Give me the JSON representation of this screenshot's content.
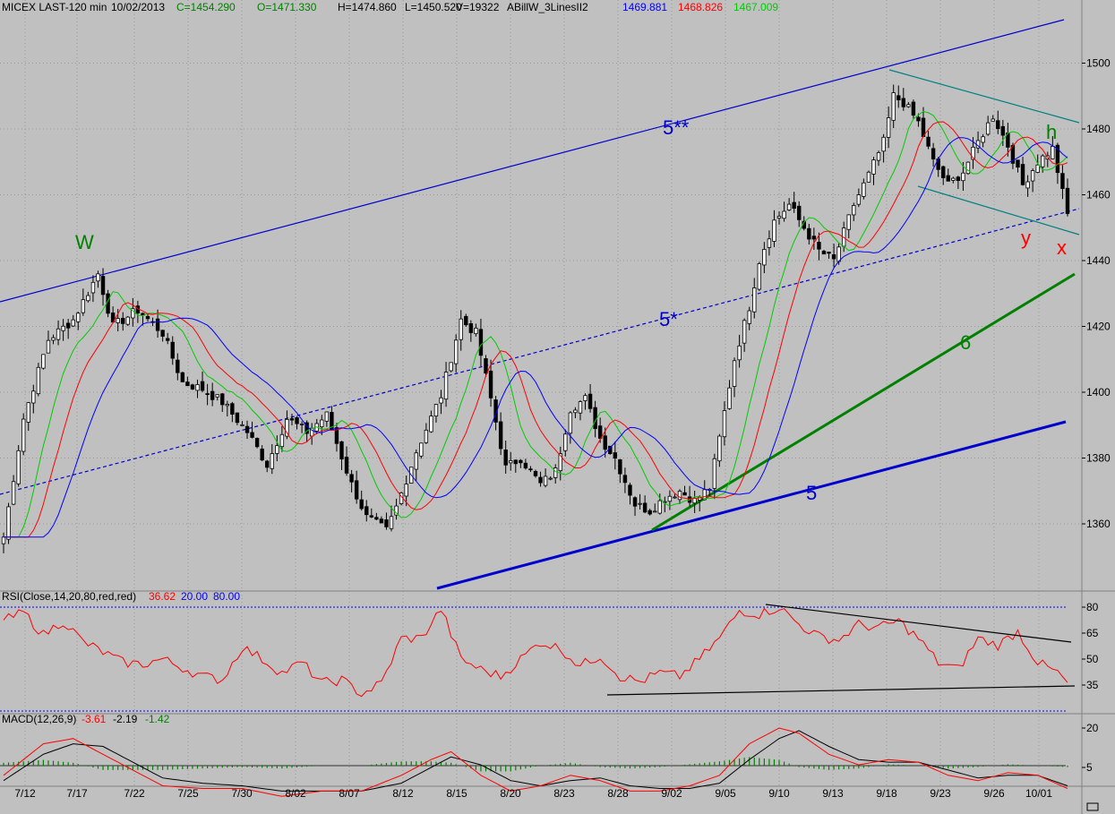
{
  "header": {
    "symbol": "MICEX LAST-120 min",
    "date": "10/02/2013",
    "close": "C=1454.290",
    "open": "O=1471.330",
    "high": "H=1474.860",
    "low": "L=1450.520",
    "volume": "V=19322",
    "indicator": "ABillW_3LinesII2",
    "ind_blue": "1469.881",
    "ind_red": "1468.826",
    "ind_green": "1467.009"
  },
  "rsi_header": {
    "label": "RSI(Close,14,20,80,red,red)",
    "value": "36.62",
    "low": "20.00",
    "high": "80.00"
  },
  "macd_header": {
    "label": "MACD(12,26,9)",
    "v1": "-3.61",
    "v2": "-2.19",
    "v3": "-1.42"
  },
  "colors": {
    "background": "#c0c0c0",
    "candles": "#000000",
    "ma_blue": "#0000ff",
    "ma_red": "#ff0000",
    "ma_green": "#00cc00",
    "channel_blue": "#0000cc",
    "trend_green": "#008000",
    "channel_teal": "#008080"
  },
  "wave_labels": [
    {
      "text": "W",
      "color": "#008000"
    },
    {
      "text": "5**",
      "color": "#0000cc"
    },
    {
      "text": "5*",
      "color": "#0000cc"
    },
    {
      "text": "6",
      "color": "#008000"
    },
    {
      "text": "5",
      "color": "#0000cc"
    },
    {
      "text": "h",
      "color": "#008000"
    },
    {
      "text": "y",
      "color": "#ff0000"
    },
    {
      "text": "x",
      "color": "#ff0000"
    }
  ],
  "chart_data": [
    {
      "type": "candlestick",
      "ylim": [
        1340,
        1515
      ],
      "y_ticks": [
        1360,
        1380,
        1400,
        1420,
        1440,
        1460,
        1480,
        1500
      ],
      "x_ticks": [
        "7/12",
        "7/17",
        "7/22",
        "7/25",
        "7/30",
        "8/02",
        "8/07",
        "8/12",
        "8/15",
        "8/20",
        "8/23",
        "8/28",
        "9/02",
        "9/05",
        "9/10",
        "9/13",
        "9/18",
        "9/23",
        "9/26",
        "10/01"
      ],
      "close_anchors": [
        [
          0,
          1356
        ],
        [
          4,
          1392
        ],
        [
          9,
          1416
        ],
        [
          14,
          1422
        ],
        [
          19,
          1436
        ],
        [
          22,
          1420
        ],
        [
          27,
          1425
        ],
        [
          32,
          1418
        ],
        [
          36,
          1403
        ],
        [
          40,
          1401
        ],
        [
          44,
          1397
        ],
        [
          49,
          1388
        ],
        [
          53,
          1378
        ],
        [
          57,
          1392
        ],
        [
          61,
          1388
        ],
        [
          65,
          1393
        ],
        [
          70,
          1372
        ],
        [
          73,
          1362
        ],
        [
          77,
          1358
        ],
        [
          79,
          1365
        ],
        [
          83,
          1382
        ],
        [
          88,
          1399
        ],
        [
          92,
          1422
        ],
        [
          95,
          1418
        ],
        [
          98,
          1398
        ],
        [
          101,
          1377
        ],
        [
          104,
          1380
        ],
        [
          108,
          1372
        ],
        [
          111,
          1376
        ],
        [
          114,
          1395
        ],
        [
          117,
          1398
        ],
        [
          120,
          1386
        ],
        [
          123,
          1380
        ],
        [
          127,
          1366
        ],
        [
          130,
          1364
        ],
        [
          133,
          1368
        ],
        [
          136,
          1370
        ],
        [
          139,
          1367
        ],
        [
          142,
          1371
        ],
        [
          144,
          1386
        ],
        [
          147,
          1410
        ],
        [
          150,
          1426
        ],
        [
          152,
          1440
        ],
        [
          155,
          1452
        ],
        [
          158,
          1457
        ],
        [
          161,
          1450
        ],
        [
          164,
          1443
        ],
        [
          167,
          1440
        ],
        [
          171,
          1457
        ],
        [
          174,
          1466
        ],
        [
          177,
          1476
        ],
        [
          179,
          1490
        ],
        [
          181,
          1488
        ],
        [
          184,
          1482
        ],
        [
          187,
          1470
        ],
        [
          190,
          1463
        ],
        [
          193,
          1467
        ],
        [
          196,
          1476
        ],
        [
          199,
          1484
        ],
        [
          202,
          1475
        ],
        [
          205,
          1463
        ],
        [
          208,
          1470
        ],
        [
          211,
          1474
        ],
        [
          214,
          1454
        ]
      ]
    },
    {
      "type": "line",
      "title": "RSI(Close,14,20,80,red,red)",
      "ylim": [
        20,
        80
      ],
      "y_ticks": [
        35,
        50,
        65,
        80
      ],
      "anchors": [
        [
          0,
          72
        ],
        [
          4,
          77
        ],
        [
          8,
          64
        ],
        [
          12,
          72
        ],
        [
          16,
          60
        ],
        [
          20,
          54
        ],
        [
          24,
          48
        ],
        [
          28,
          47
        ],
        [
          32,
          50
        ],
        [
          36,
          45
        ],
        [
          40,
          40
        ],
        [
          44,
          38
        ],
        [
          48,
          57
        ],
        [
          52,
          50
        ],
        [
          56,
          42
        ],
        [
          60,
          48
        ],
        [
          64,
          36
        ],
        [
          68,
          38
        ],
        [
          72,
          30
        ],
        [
          76,
          36
        ],
        [
          80,
          62
        ],
        [
          84,
          62
        ],
        [
          88,
          79
        ],
        [
          92,
          50
        ],
        [
          96,
          44
        ],
        [
          100,
          40
        ],
        [
          104,
          50
        ],
        [
          108,
          60
        ],
        [
          112,
          56
        ],
        [
          116,
          46
        ],
        [
          120,
          52
        ],
        [
          124,
          40
        ],
        [
          128,
          37
        ],
        [
          132,
          42
        ],
        [
          136,
          40
        ],
        [
          140,
          50
        ],
        [
          144,
          62
        ],
        [
          148,
          78
        ],
        [
          152,
          76
        ],
        [
          156,
          80
        ],
        [
          160,
          70
        ],
        [
          164,
          63
        ],
        [
          168,
          61
        ],
        [
          172,
          70
        ],
        [
          176,
          68
        ],
        [
          180,
          72
        ],
        [
          184,
          62
        ],
        [
          188,
          48
        ],
        [
          192,
          44
        ],
        [
          196,
          62
        ],
        [
          200,
          58
        ],
        [
          204,
          66
        ],
        [
          208,
          48
        ],
        [
          212,
          42
        ],
        [
          214,
          36
        ]
      ]
    },
    {
      "type": "line",
      "title": "MACD(12,26,9)",
      "ylim": [
        -8,
        24
      ],
      "y_ticks": [
        5,
        20
      ],
      "macd_anchors": [
        [
          0,
          2
        ],
        [
          8,
          14
        ],
        [
          14,
          16
        ],
        [
          20,
          10
        ],
        [
          26,
          4
        ],
        [
          32,
          -2
        ],
        [
          40,
          -3
        ],
        [
          48,
          -3
        ],
        [
          56,
          -6
        ],
        [
          64,
          -4
        ],
        [
          72,
          -4
        ],
        [
          80,
          2
        ],
        [
          86,
          8
        ],
        [
          90,
          11
        ],
        [
          96,
          2
        ],
        [
          102,
          -4
        ],
        [
          108,
          -2
        ],
        [
          114,
          2
        ],
        [
          120,
          0
        ],
        [
          126,
          -4
        ],
        [
          132,
          -4
        ],
        [
          138,
          -2
        ],
        [
          144,
          2
        ],
        [
          150,
          14
        ],
        [
          156,
          20
        ],
        [
          160,
          18
        ],
        [
          166,
          10
        ],
        [
          172,
          6
        ],
        [
          178,
          8
        ],
        [
          184,
          7
        ],
        [
          190,
          2
        ],
        [
          196,
          0
        ],
        [
          202,
          3
        ],
        [
          208,
          2
        ],
        [
          214,
          -3
        ]
      ],
      "signal_anchors": [
        [
          0,
          0
        ],
        [
          8,
          10
        ],
        [
          14,
          14
        ],
        [
          20,
          13
        ],
        [
          26,
          7
        ],
        [
          32,
          1
        ],
        [
          40,
          -1
        ],
        [
          48,
          -2
        ],
        [
          56,
          -4
        ],
        [
          64,
          -4
        ],
        [
          72,
          -4
        ],
        [
          80,
          -1
        ],
        [
          86,
          5
        ],
        [
          90,
          9
        ],
        [
          96,
          6
        ],
        [
          102,
          0
        ],
        [
          108,
          -2
        ],
        [
          114,
          0
        ],
        [
          120,
          1
        ],
        [
          126,
          -2
        ],
        [
          132,
          -3
        ],
        [
          138,
          -3
        ],
        [
          144,
          -1
        ],
        [
          150,
          8
        ],
        [
          156,
          16
        ],
        [
          160,
          19
        ],
        [
          166,
          13
        ],
        [
          172,
          8
        ],
        [
          178,
          7
        ],
        [
          184,
          7
        ],
        [
          190,
          4
        ],
        [
          196,
          1
        ],
        [
          202,
          2
        ],
        [
          208,
          2
        ],
        [
          214,
          -2
        ]
      ]
    }
  ]
}
